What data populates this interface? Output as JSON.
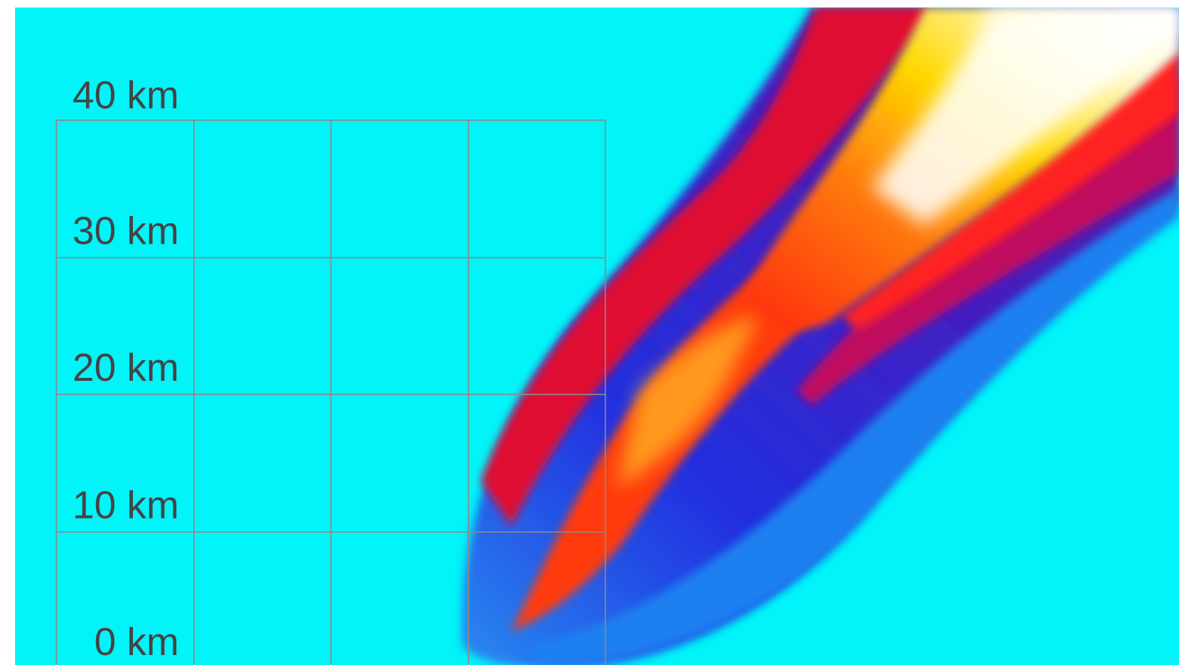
{
  "scale": {
    "labels": [
      "40 km",
      "30 km",
      "20 km",
      "10 km",
      "0 km"
    ]
  }
}
